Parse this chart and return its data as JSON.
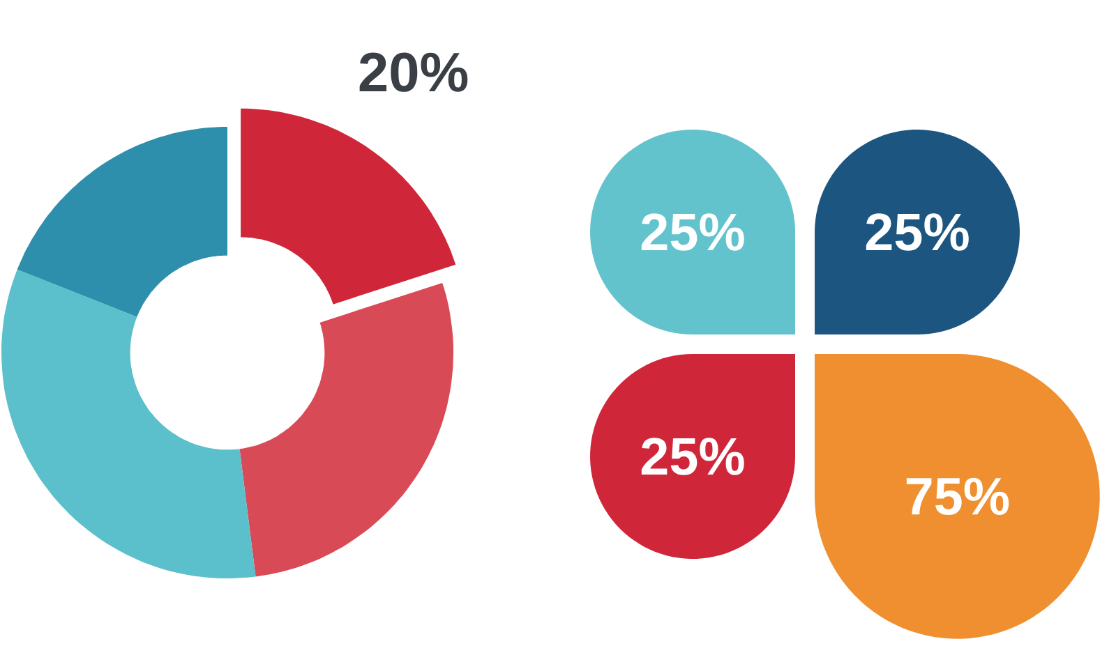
{
  "chart_data": [
    {
      "type": "donut",
      "categories": [
        null,
        null,
        null,
        null
      ],
      "values": [
        20,
        28,
        33,
        19
      ],
      "colors": [
        "#d0263a",
        "#d94a57",
        "#5bc0cb",
        "#2e8fac"
      ],
      "value_labels": [
        "20%",
        null,
        null,
        null
      ]
    },
    {
      "type": "other",
      "categories": [
        null,
        null,
        null,
        null
      ],
      "values": [
        25,
        25,
        25,
        75
      ],
      "colors": [
        "#63c3cc",
        "#1c5580",
        "#d0263a",
        "#ef8f2f"
      ],
      "value_labels": [
        "25%",
        "25%",
        "25%",
        "75%"
      ]
    }
  ]
}
